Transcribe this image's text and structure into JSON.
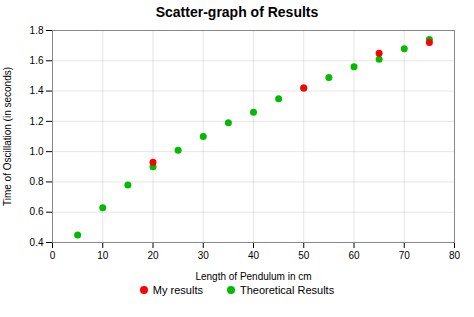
{
  "chart_data": {
    "type": "scatter",
    "title": "Scatter-graph of Results",
    "x_label": "Length of Pendulum in cm",
    "y_label": "Time of Oscillation (in seconds)",
    "xlim": [
      0,
      80
    ],
    "ylim": [
      0.4,
      1.8
    ],
    "xticks": [
      0,
      10,
      20,
      30,
      40,
      50,
      60,
      70,
      80
    ],
    "yticks": [
      0.4,
      0.6,
      0.8,
      {
        "value": 1.0,
        "label": "1.0"
      },
      1.2,
      1.4,
      1.6,
      1.8
    ],
    "grid": true,
    "legend": "bottom",
    "marker": "circle",
    "series": [
      {
        "name": "My results",
        "color": "#ff0000",
        "x": [
          20,
          50,
          65,
          75
        ],
        "values": [
          0.93,
          1.42,
          1.65,
          1.72
        ]
      },
      {
        "name": "Theoretical Results",
        "color": "#00bb00",
        "x": [
          5,
          10,
          15,
          20,
          25,
          30,
          35,
          40,
          45,
          50,
          55,
          60,
          65,
          70,
          75
        ],
        "values": [
          0.45,
          0.63,
          0.78,
          0.9,
          1.01,
          1.1,
          1.19,
          1.26,
          1.35,
          1.42,
          1.49,
          1.56,
          1.61,
          1.68,
          1.74
        ]
      }
    ]
  }
}
